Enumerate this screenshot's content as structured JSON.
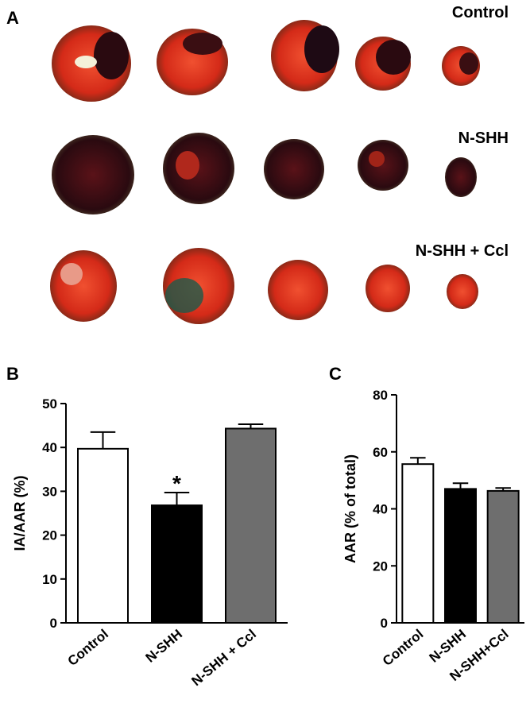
{
  "panels": {
    "a": "A",
    "b": "B",
    "c": "C"
  },
  "photo_rows": [
    "Control",
    "N-SHH",
    "N-SHH + Ccl"
  ],
  "chart_data": [
    {
      "type": "bar",
      "ylabel": "IA/AAR (%)",
      "categories": [
        "Control",
        "N-SHH",
        "N-SHH + Ccl"
      ],
      "values": [
        39.7,
        26.8,
        44.3
      ],
      "errors": [
        3.8,
        2.9,
        1.0
      ],
      "colors": [
        "#ffffff",
        "#000000",
        "#6e6e6e"
      ],
      "ylim": [
        0,
        50
      ],
      "yticks": [
        0,
        10,
        20,
        30,
        40,
        50
      ],
      "annotation": "*"
    },
    {
      "type": "bar",
      "ylabel": "AAR (% of total)",
      "categories": [
        "Control",
        "N-SHH",
        "N-SHH+Ccl"
      ],
      "values": [
        55.7,
        47.0,
        46.3
      ],
      "errors": [
        2.2,
        2.0,
        1.0
      ],
      "colors": [
        "#ffffff",
        "#000000",
        "#6e6e6e"
      ],
      "ylim": [
        0,
        80
      ],
      "yticks": [
        0,
        20,
        40,
        60,
        80
      ]
    }
  ]
}
